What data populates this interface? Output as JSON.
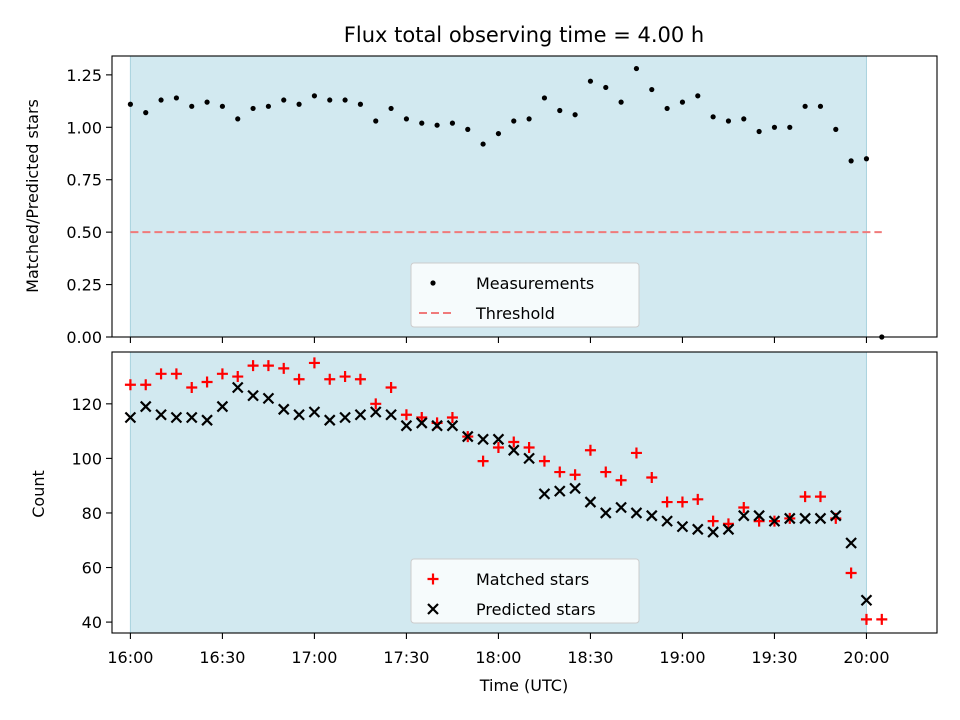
{
  "chart_data": [
    {
      "panel": "top",
      "type": "scatter",
      "title": "Flux total observing time = 4.00 h",
      "xlabel": "",
      "ylabel": "Matched/Predicted stars",
      "xlim": [
        "15:54",
        "20:23"
      ],
      "ylim": [
        0,
        1.34
      ],
      "yticks": [
        "0.00",
        "0.25",
        "0.50",
        "0.75",
        "1.00",
        "1.25"
      ],
      "shaded_window": {
        "start": "16:00",
        "end": "20:00",
        "color": "#d2e9f0"
      },
      "legend_position": "lower center",
      "series": [
        {
          "name": "Measurements",
          "marker": "dot",
          "color": "#000000",
          "x": [
            "16:00",
            "16:05",
            "16:10",
            "16:15",
            "16:20",
            "16:25",
            "16:30",
            "16:35",
            "16:40",
            "16:45",
            "16:50",
            "16:55",
            "17:00",
            "17:05",
            "17:10",
            "17:15",
            "17:20",
            "17:25",
            "17:30",
            "17:35",
            "17:40",
            "17:45",
            "17:50",
            "17:55",
            "18:00",
            "18:05",
            "18:10",
            "18:15",
            "18:20",
            "18:25",
            "18:30",
            "18:35",
            "18:40",
            "18:45",
            "18:50",
            "18:55",
            "19:00",
            "19:05",
            "19:10",
            "19:15",
            "19:20",
            "19:25",
            "19:30",
            "19:35",
            "19:40",
            "19:45",
            "19:50",
            "19:55",
            "20:00",
            "20:05"
          ],
          "y": [
            1.11,
            1.07,
            1.13,
            1.14,
            1.1,
            1.12,
            1.1,
            1.04,
            1.09,
            1.1,
            1.13,
            1.11,
            1.15,
            1.13,
            1.13,
            1.11,
            1.03,
            1.09,
            1.04,
            1.02,
            1.01,
            1.02,
            0.99,
            0.92,
            0.97,
            1.03,
            1.04,
            1.14,
            1.08,
            1.06,
            1.22,
            1.19,
            1.12,
            1.28,
            1.18,
            1.09,
            1.12,
            1.15,
            1.05,
            1.03,
            1.04,
            0.98,
            1.0,
            1.0,
            1.1,
            1.1,
            0.99,
            0.84,
            0.85,
            0.0
          ]
        },
        {
          "name": "Threshold",
          "style": "dashed",
          "color": "#f07a7a",
          "x": [
            "16:00",
            "20:05"
          ],
          "y": [
            0.5,
            0.5
          ]
        }
      ]
    },
    {
      "panel": "bottom",
      "type": "scatter",
      "title": "",
      "xlabel": "Time (UTC)",
      "ylabel": "Count",
      "xlim": [
        "15:54",
        "20:23"
      ],
      "ylim": [
        36,
        139
      ],
      "yticks": [
        "40",
        "60",
        "80",
        "100",
        "120"
      ],
      "xticks": [
        "16:00",
        "16:30",
        "17:00",
        "17:30",
        "18:00",
        "18:30",
        "19:00",
        "19:30",
        "20:00"
      ],
      "shaded_window": {
        "start": "16:00",
        "end": "20:00",
        "color": "#d2e9f0"
      },
      "legend_position": "lower center",
      "series": [
        {
          "name": "Matched stars",
          "marker": "plus",
          "color": "#ff0000",
          "x": [
            "16:00",
            "16:05",
            "16:10",
            "16:15",
            "16:20",
            "16:25",
            "16:30",
            "16:35",
            "16:40",
            "16:45",
            "16:50",
            "16:55",
            "17:00",
            "17:05",
            "17:10",
            "17:15",
            "17:20",
            "17:25",
            "17:30",
            "17:35",
            "17:40",
            "17:45",
            "17:50",
            "17:55",
            "18:00",
            "18:05",
            "18:10",
            "18:15",
            "18:20",
            "18:25",
            "18:30",
            "18:35",
            "18:40",
            "18:45",
            "18:50",
            "18:55",
            "19:00",
            "19:05",
            "19:10",
            "19:15",
            "19:20",
            "19:25",
            "19:30",
            "19:35",
            "19:40",
            "19:45",
            "19:50",
            "19:55",
            "20:00",
            "20:05"
          ],
          "y": [
            127,
            127,
            131,
            131,
            126,
            128,
            131,
            130,
            134,
            134,
            133,
            129,
            135,
            129,
            130,
            129,
            120,
            126,
            116,
            115,
            113,
            115,
            108,
            99,
            104,
            106,
            104,
            99,
            95,
            94,
            103,
            95,
            92,
            102,
            93,
            84,
            84,
            85,
            77,
            76,
            82,
            77,
            77,
            78,
            86,
            86,
            78,
            58,
            41,
            41
          ]
        },
        {
          "name": "Predicted stars",
          "marker": "x",
          "color": "#000000",
          "x": [
            "16:00",
            "16:05",
            "16:10",
            "16:15",
            "16:20",
            "16:25",
            "16:30",
            "16:35",
            "16:40",
            "16:45",
            "16:50",
            "16:55",
            "17:00",
            "17:05",
            "17:10",
            "17:15",
            "17:20",
            "17:25",
            "17:30",
            "17:35",
            "17:40",
            "17:45",
            "17:50",
            "17:55",
            "18:00",
            "18:05",
            "18:10",
            "18:15",
            "18:20",
            "18:25",
            "18:30",
            "18:35",
            "18:40",
            "18:45",
            "18:50",
            "18:55",
            "19:00",
            "19:05",
            "19:10",
            "19:15",
            "19:20",
            "19:25",
            "19:30",
            "19:35",
            "19:40",
            "19:45",
            "19:50",
            "19:55",
            "20:00"
          ],
          "y": [
            115,
            119,
            116,
            115,
            115,
            114,
            119,
            126,
            123,
            122,
            118,
            116,
            117,
            114,
            115,
            116,
            117,
            116,
            112,
            113,
            112,
            112,
            108,
            107,
            107,
            103,
            100,
            87,
            88,
            89,
            84,
            80,
            82,
            80,
            79,
            77,
            75,
            74,
            73,
            74,
            79,
            79,
            77,
            78,
            78,
            78,
            79,
            69,
            48
          ]
        }
      ]
    }
  ]
}
